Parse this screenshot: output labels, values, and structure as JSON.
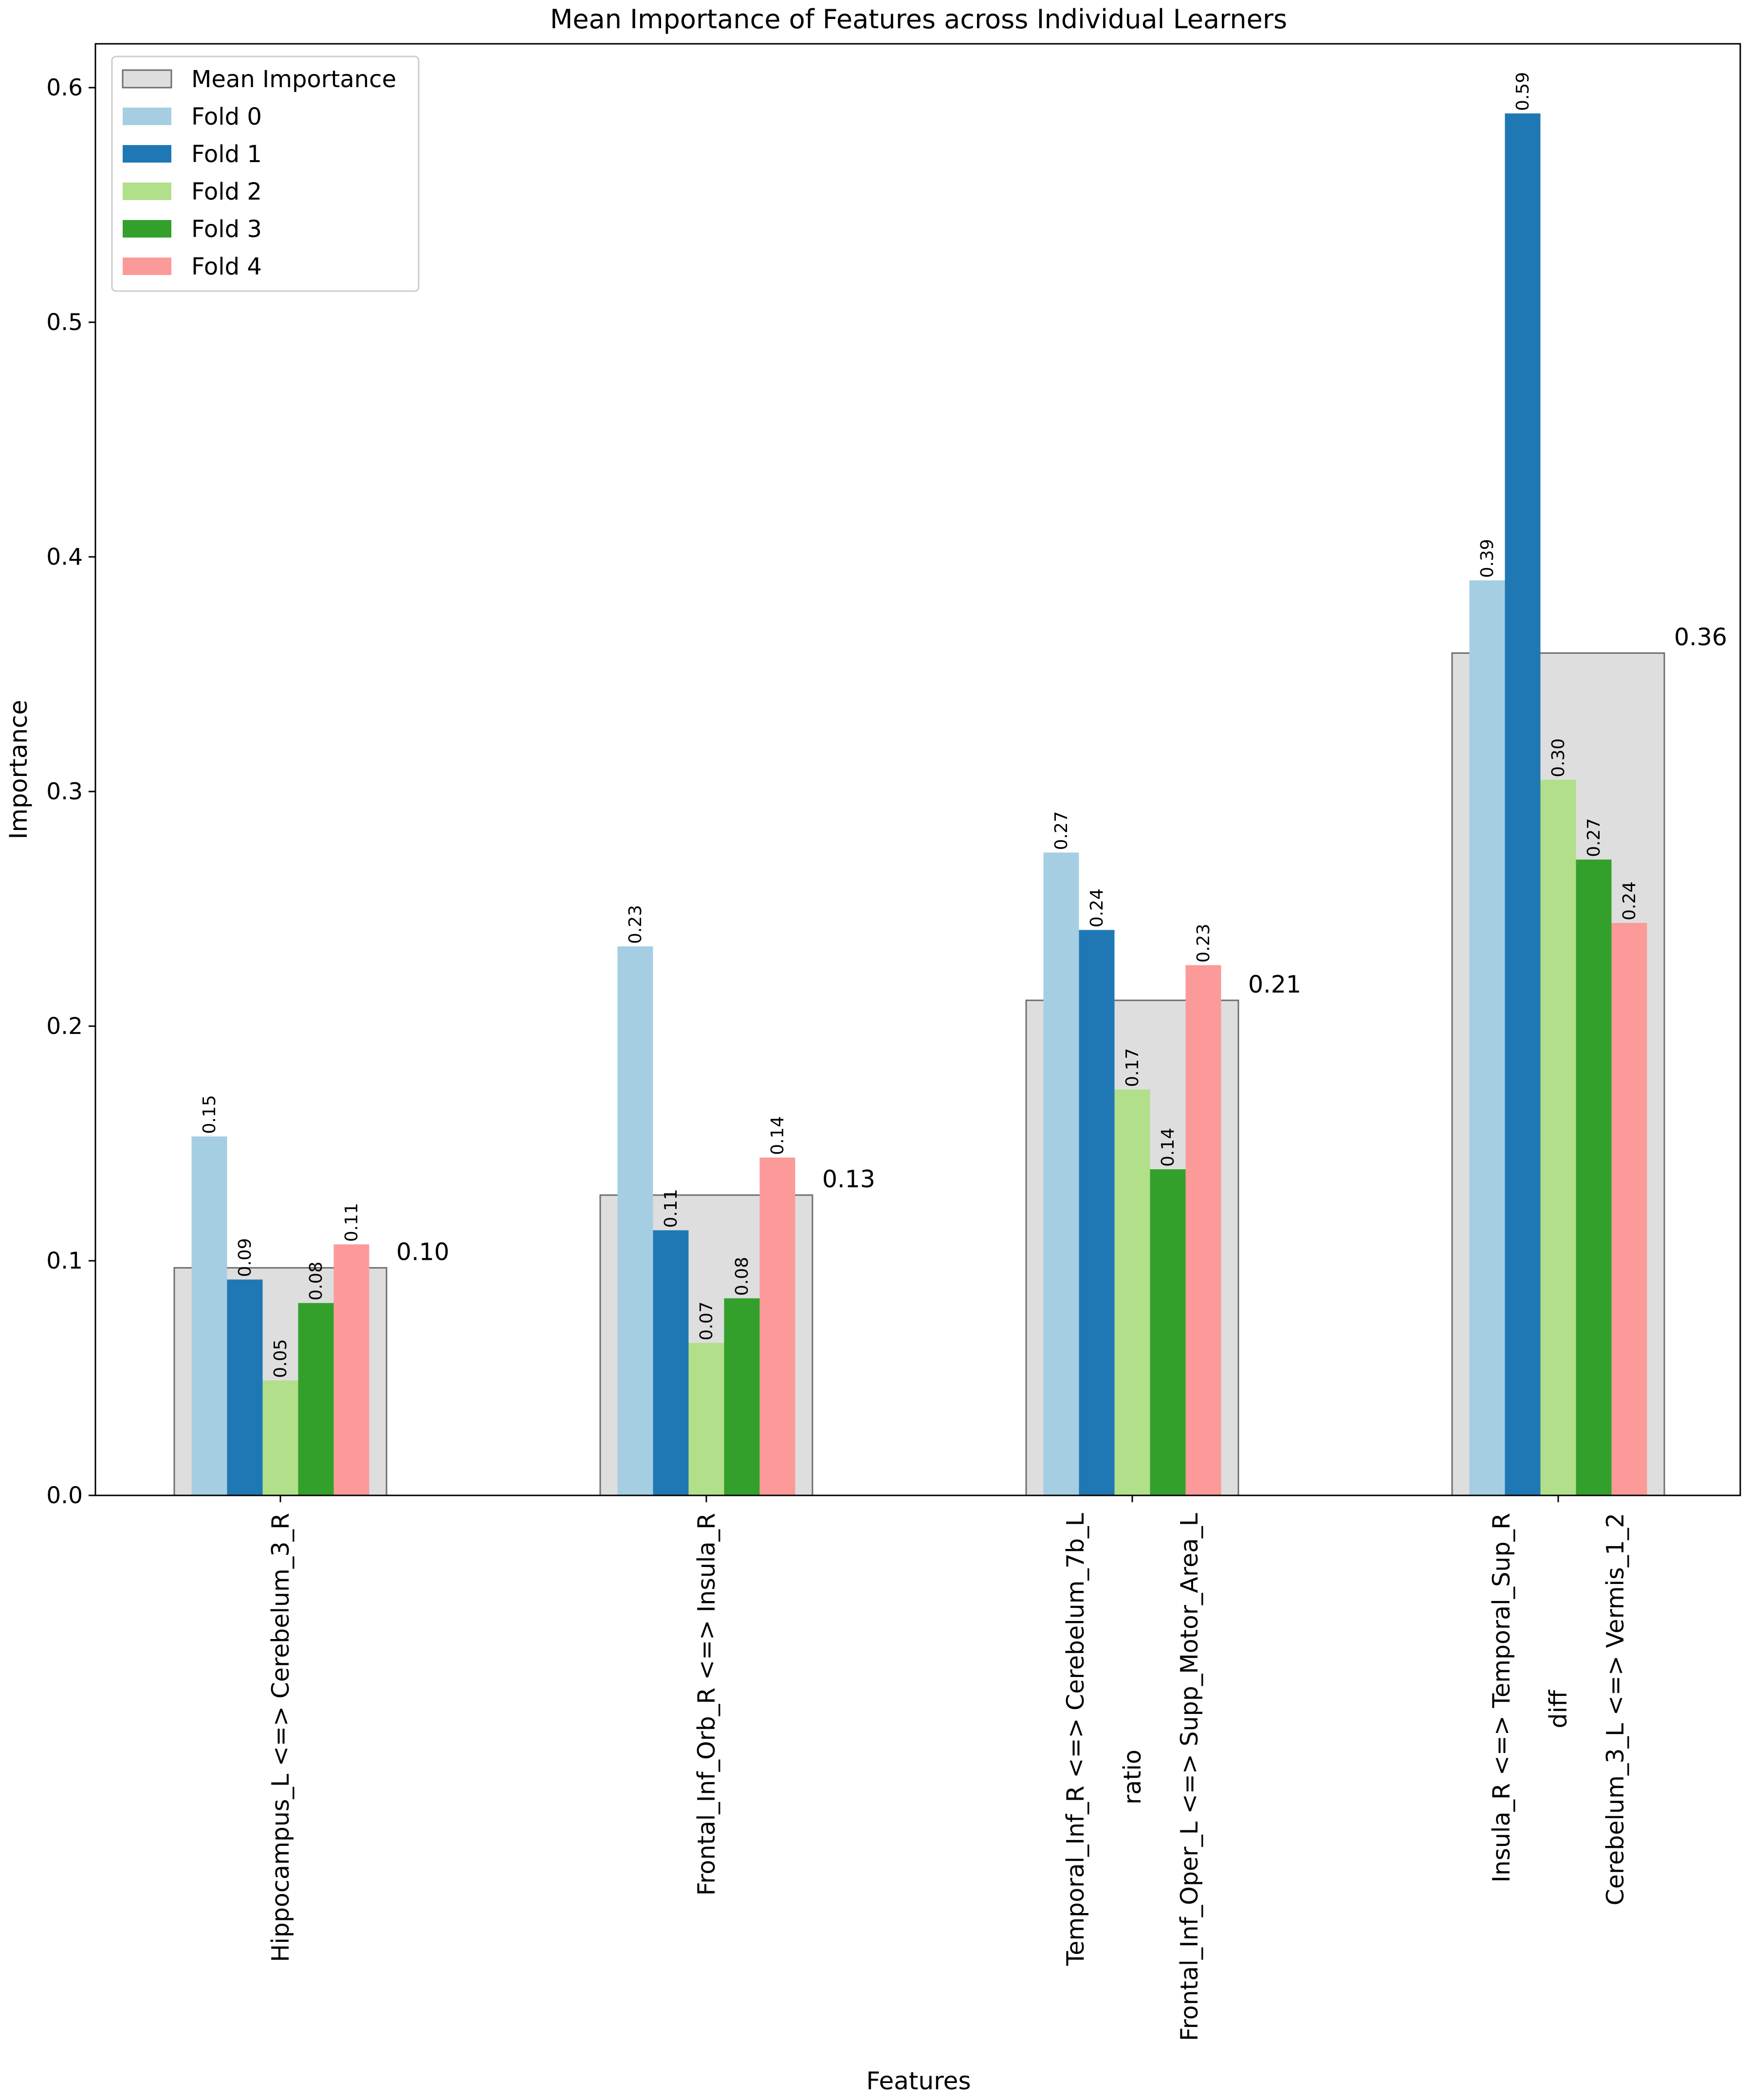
{
  "chart_data": {
    "type": "bar",
    "title": "Mean Importance of Features across Individual Learners",
    "xlabel": "Features",
    "ylabel": "Importance",
    "ylim": [
      0,
      0.62
    ],
    "yticks": [
      0.0,
      0.1,
      0.2,
      0.3,
      0.4,
      0.5,
      0.6
    ],
    "ytick_labels": [
      "0.0",
      "0.1",
      "0.2",
      "0.3",
      "0.4",
      "0.5",
      "0.6"
    ],
    "grid": false,
    "legend_position": "top-left",
    "categories": [
      [
        "Hippocampus_L <=> Cerebelum_3_R"
      ],
      [
        "Frontal_Inf_Orb_R <=> Insula_R"
      ],
      [
        "Temporal_Inf_R <=> Cerebelum_7b_L",
        "ratio",
        "Frontal_Inf_Oper_L <=> Supp_Motor_Area_L"
      ],
      [
        "Insula_R <=> Temporal_Sup_R",
        "diff",
        "Cerebelum_3_L <=> Vermis_1_2"
      ]
    ],
    "mean": {
      "name": "Mean Importance",
      "color": "#dedede",
      "edge_color": "#6e6e6e",
      "values": [
        0.097,
        0.128,
        0.211,
        0.359
      ],
      "labels": [
        "0.10",
        "0.13",
        "0.21",
        "0.36"
      ]
    },
    "series": [
      {
        "name": "Fold 0",
        "color": "#a6cee3",
        "values": [
          0.153,
          0.234,
          0.274,
          0.39
        ],
        "labels": [
          "0.15",
          "0.23",
          "0.27",
          "0.39"
        ]
      },
      {
        "name": "Fold 1",
        "color": "#1f78b4",
        "values": [
          0.092,
          0.113,
          0.241,
          0.589
        ],
        "labels": [
          "0.09",
          "0.11",
          "0.24",
          "0.59"
        ]
      },
      {
        "name": "Fold 2",
        "color": "#b2df8a",
        "values": [
          0.049,
          0.065,
          0.173,
          0.305
        ],
        "labels": [
          "0.05",
          "0.07",
          "0.17",
          "0.30"
        ]
      },
      {
        "name": "Fold 3",
        "color": "#33a02c",
        "values": [
          0.082,
          0.084,
          0.139,
          0.271
        ],
        "labels": [
          "0.08",
          "0.08",
          "0.14",
          "0.27"
        ]
      },
      {
        "name": "Fold 4",
        "color": "#fb9a99",
        "values": [
          0.107,
          0.144,
          0.226,
          0.244
        ],
        "labels": [
          "0.11",
          "0.14",
          "0.23",
          "0.24"
        ]
      }
    ]
  }
}
